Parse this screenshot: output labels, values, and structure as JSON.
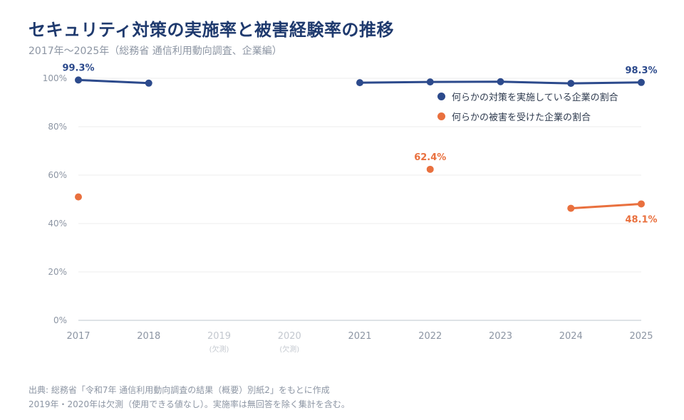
{
  "header": {
    "title": "セキュリティ対策の実施率と被害経験率の推移",
    "subtitle": "2017年〜2025年（総務省 通信利用動向調査、企業編）"
  },
  "notes": {
    "source": "出典: 総務省「令和7年 通信利用動向調査の結果（概要）別紙2」をもとに作成",
    "caveat": "2019年・2020年は欠測（使用できる値なし）。実施率は無回答を除く集計を含む。"
  },
  "colors": {
    "security": "#2c4a8c",
    "damage": "#e9703e",
    "grid": "#eeeeee",
    "axis": "#d4d8dd",
    "tick": "#8c95a3",
    "missing": "#c3c8cf"
  },
  "chart_data": {
    "type": "line",
    "title": "セキュリティ対策の実施率と被害経験率の推移",
    "x": [
      "2017",
      "2018",
      "2019",
      "2020",
      "2021",
      "2022",
      "2023",
      "2024",
      "2025"
    ],
    "x_missing_note": "(欠測)",
    "missing_indices": [
      2,
      3
    ],
    "yticks": [
      "0%",
      "20%",
      "40%",
      "60%",
      "80%",
      "100%"
    ],
    "ylim": [
      0,
      100
    ],
    "grid": true,
    "legend_position": "top-right",
    "series": [
      {
        "name": "何らかの対策を実施している企業の割合",
        "values": [
          99.3,
          98.0,
          null,
          null,
          98.2,
          98.5,
          98.6,
          97.9,
          98.3
        ],
        "labels": [
          {
            "index": 0,
            "text": "99.3%"
          },
          {
            "index": 8,
            "text": "98.3%"
          }
        ]
      },
      {
        "name": "何らかの被害を受けた企業の割合",
        "values": [
          51.0,
          null,
          null,
          null,
          null,
          62.4,
          null,
          46.3,
          48.1
        ],
        "labels": [
          {
            "index": 5,
            "text": "62.4%"
          },
          {
            "index": 8,
            "text": "48.1%"
          }
        ]
      }
    ]
  }
}
